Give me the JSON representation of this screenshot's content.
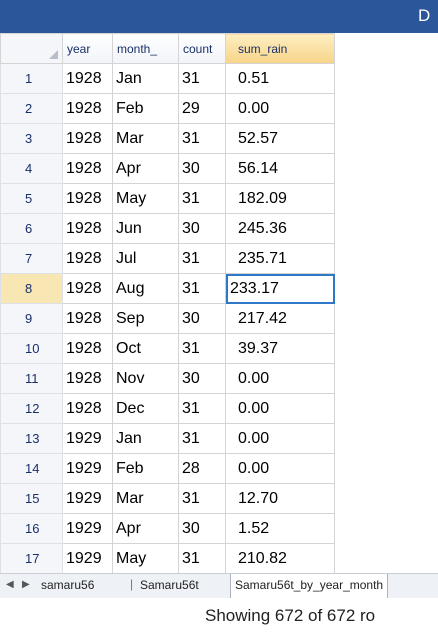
{
  "titlebar": {
    "title": "D"
  },
  "grid": {
    "columns": [
      "year",
      "month_",
      "count",
      "sum_rain"
    ],
    "rows": [
      {
        "num": "1",
        "year": "1928",
        "month": "Jan",
        "count": "31",
        "sum_rain": "0.51"
      },
      {
        "num": "2",
        "year": "1928",
        "month": "Feb",
        "count": "29",
        "sum_rain": "0.00"
      },
      {
        "num": "3",
        "year": "1928",
        "month": "Mar",
        "count": "31",
        "sum_rain": "52.57"
      },
      {
        "num": "4",
        "year": "1928",
        "month": "Apr",
        "count": "30",
        "sum_rain": "56.14"
      },
      {
        "num": "5",
        "year": "1928",
        "month": "May",
        "count": "31",
        "sum_rain": "182.09"
      },
      {
        "num": "6",
        "year": "1928",
        "month": "Jun",
        "count": "30",
        "sum_rain": "245.36"
      },
      {
        "num": "7",
        "year": "1928",
        "month": "Jul",
        "count": "31",
        "sum_rain": "235.71"
      },
      {
        "num": "8",
        "year": "1928",
        "month": "Aug",
        "count": "31",
        "sum_rain": "233.17"
      },
      {
        "num": "9",
        "year": "1928",
        "month": "Sep",
        "count": "30",
        "sum_rain": "217.42"
      },
      {
        "num": "10",
        "year": "1928",
        "month": "Oct",
        "count": "31",
        "sum_rain": "39.37"
      },
      {
        "num": "11",
        "year": "1928",
        "month": "Nov",
        "count": "30",
        "sum_rain": "0.00"
      },
      {
        "num": "12",
        "year": "1928",
        "month": "Dec",
        "count": "31",
        "sum_rain": "0.00"
      },
      {
        "num": "13",
        "year": "1929",
        "month": "Jan",
        "count": "31",
        "sum_rain": "0.00"
      },
      {
        "num": "14",
        "year": "1929",
        "month": "Feb",
        "count": "28",
        "sum_rain": "0.00"
      },
      {
        "num": "15",
        "year": "1929",
        "month": "Mar",
        "count": "31",
        "sum_rain": "12.70"
      },
      {
        "num": "16",
        "year": "1929",
        "month": "Apr",
        "count": "30",
        "sum_rain": "1.52"
      },
      {
        "num": "17",
        "year": "1929",
        "month": "May",
        "count": "31",
        "sum_rain": "210.82"
      }
    ]
  },
  "tabs": [
    {
      "label": "samaru56"
    },
    {
      "label": "Samaru56t"
    },
    {
      "label": "Samaru56t_by_year_month"
    }
  ],
  "status": {
    "text": "Showing 672 of 672 ro"
  },
  "colors": {
    "titlebar": "#2b579a",
    "selection": "#2f78c8",
    "sorted_header": "#f7d488"
  }
}
